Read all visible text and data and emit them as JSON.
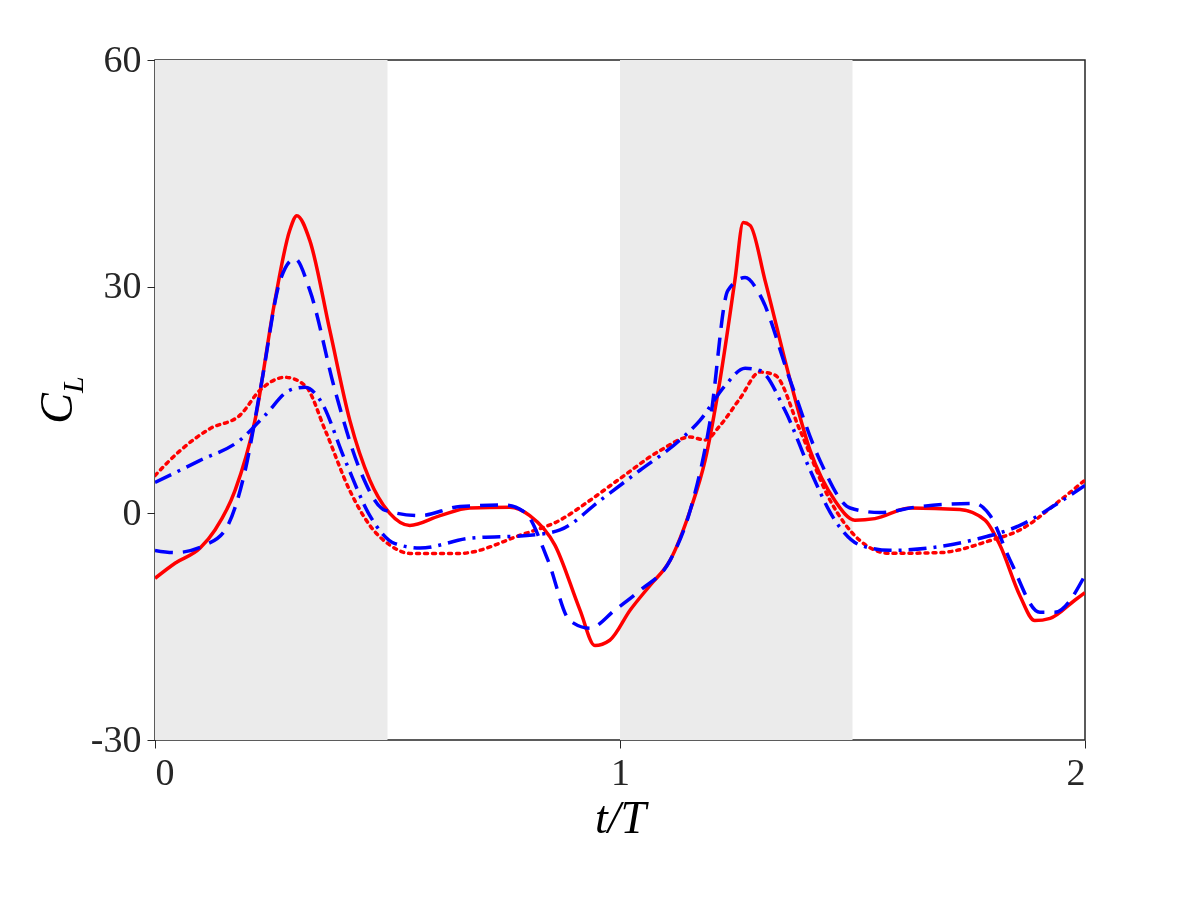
{
  "chart_data": {
    "type": "line",
    "xlabel": "t/T",
    "ylabel": "C$_{L}$",
    "xlim": [
      0,
      2
    ],
    "ylim": [
      -30,
      60
    ],
    "xticks": [
      0,
      1,
      2
    ],
    "yticks": [
      -30,
      0,
      30,
      60
    ],
    "grid": false,
    "bands": [
      {
        "axis": "x",
        "from": 0,
        "to": 0.5,
        "color": "#ebebeb"
      },
      {
        "axis": "x",
        "from": 1,
        "to": 1.5,
        "color": "#ebebeb"
      }
    ],
    "series": [
      {
        "color": "#ff0000",
        "line_style": "solid",
        "x": [
          0,
          0.043,
          0.097,
          0.129,
          0.172,
          0.215,
          0.258,
          0.29,
          0.305,
          0.333,
          0.376,
          0.419,
          0.462,
          0.505,
          0.548,
          0.613,
          0.677,
          0.763,
          0.806,
          0.86,
          0.914,
          0.946,
          0.978,
          1.022,
          1.065,
          1.108,
          1.151,
          1.183,
          1.215,
          1.247,
          1.265,
          1.28,
          1.312,
          1.366,
          1.409,
          1.462,
          1.505,
          1.548,
          1.624,
          1.731,
          1.785,
          1.817,
          1.86,
          1.892,
          1.925,
          1.978,
          2
        ],
        "values": [
          -8.6,
          -6.6,
          -4.6,
          -2.2,
          3.0,
          12.3,
          28.2,
          37.5,
          39.4,
          36.1,
          24.2,
          12.3,
          4.4,
          0,
          -1.6,
          -0.3,
          0.7,
          0.8,
          -0.3,
          -4.2,
          -12.8,
          -17.5,
          -16.8,
          -12.8,
          -9.5,
          -6.2,
          0.4,
          7.0,
          17.6,
          30.8,
          38.5,
          38.1,
          30.8,
          17.6,
          8.3,
          1.7,
          -0.9,
          -0.7,
          0.7,
          0.5,
          -0.9,
          -4.2,
          -10.9,
          -14.2,
          -13.9,
          -11.5,
          -10.5
        ]
      },
      {
        "color": "#ff0000",
        "line_style": "dotted",
        "x": [
          0,
          0.054,
          0.118,
          0.183,
          0.226,
          0.28,
          0.323,
          0.366,
          0.419,
          0.462,
          0.505,
          0.548,
          0.656,
          0.785,
          0.871,
          0.935,
          1.0,
          1.086,
          1.151,
          1.183,
          1.215,
          1.258,
          1.301,
          1.333,
          1.387,
          1.452,
          1.516,
          1.58,
          1.688,
          1.796,
          1.86,
          1.946,
          2
        ],
        "values": [
          5.0,
          8.3,
          11.2,
          13.0,
          16.3,
          18.0,
          16.9,
          11.0,
          3.0,
          -1.6,
          -4.2,
          -5.3,
          -5.3,
          -2.9,
          -0.9,
          1.7,
          4.6,
          8.3,
          10.1,
          9.7,
          11.6,
          15.2,
          18.7,
          18.3,
          11.0,
          1.7,
          -3.6,
          -5.3,
          -5.2,
          -3.6,
          -2.2,
          1.7,
          4.4
        ]
      },
      {
        "color": "#0000ff",
        "line_style": "dashed",
        "x": [
          0,
          0.043,
          0.108,
          0.151,
          0.194,
          0.23,
          0.269,
          0.301,
          0.333,
          0.387,
          0.441,
          0.495,
          0.57,
          0.656,
          0.753,
          0.796,
          0.845,
          0.892,
          0.935,
          0.989,
          1.043,
          1.108,
          1.151,
          1.194,
          1.232,
          1.269,
          1.301,
          1.366,
          1.43,
          1.495,
          1.559,
          1.645,
          1.763,
          1.796,
          1.839,
          1.903,
          1.935,
          2
        ],
        "values": [
          -4.9,
          -5.2,
          -4.2,
          -2.2,
          5.7,
          17.6,
          30.8,
          33.7,
          29.5,
          16.3,
          5.7,
          0.4,
          -0.3,
          0.9,
          1.1,
          0.1,
          -6.2,
          -14.2,
          -15.2,
          -12.8,
          -10.2,
          -6.2,
          0.4,
          12.3,
          29.5,
          31.2,
          28.9,
          17.6,
          7.0,
          0.7,
          0.1,
          0.9,
          1.3,
          -0.3,
          -6.2,
          -13.1,
          -13.1,
          -8.2
        ]
      },
      {
        "color": "#0000ff",
        "line_style": "dashdot",
        "x": [
          0,
          0.097,
          0.183,
          0.237,
          0.29,
          0.323,
          0.355,
          0.409,
          0.462,
          0.516,
          0.57,
          0.677,
          0.806,
          0.871,
          0.957,
          1.043,
          1.129,
          1.172,
          1.226,
          1.269,
          1.301,
          1.355,
          1.409,
          1.462,
          1.516,
          1.58,
          1.774,
          1.86,
          1.946,
          2
        ],
        "values": [
          4.1,
          7.0,
          9.7,
          13.0,
          16.3,
          16.7,
          15.0,
          7.0,
          -0.3,
          -4.0,
          -4.6,
          -3.3,
          -2.9,
          -2.2,
          1.7,
          5.7,
          9.7,
          12.3,
          16.9,
          19.2,
          18.9,
          13.6,
          5.7,
          -0.9,
          -4.2,
          -4.9,
          -3.3,
          -1.6,
          1.5,
          3.7
        ]
      }
    ]
  }
}
